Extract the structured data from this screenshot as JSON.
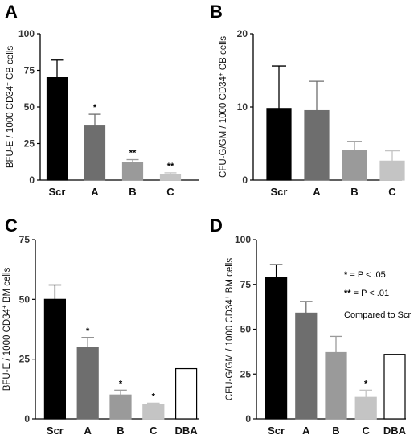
{
  "chart_data": [
    {
      "type": "bar",
      "panel": "A",
      "categories": [
        "Scr",
        "A",
        "B",
        "C"
      ],
      "values": [
        70,
        37,
        12,
        4
      ],
      "errors": [
        12,
        8,
        2,
        1
      ],
      "annotations": [
        "",
        "*",
        "**",
        "**"
      ],
      "colors": [
        "#000000",
        "#6e6e6e",
        "#9a9a9a",
        "#c4c4c4"
      ],
      "ylabel": "BFU-E / 1000 CD34",
      "ylabel_sup": "+",
      "ylabel_tail": " CB cells",
      "ylim": [
        0,
        100
      ],
      "yticks": [
        "0",
        "25",
        "50",
        "75",
        "100"
      ]
    },
    {
      "type": "bar",
      "panel": "B",
      "categories": [
        "Scr",
        "A",
        "B",
        "C"
      ],
      "values": [
        9.8,
        9.5,
        4.1,
        2.6
      ],
      "errors": [
        5.8,
        4,
        1.2,
        1.4
      ],
      "annotations": [
        "",
        "",
        "",
        ""
      ],
      "colors": [
        "#000000",
        "#6e6e6e",
        "#9a9a9a",
        "#c4c4c4"
      ],
      "ylabel": "CFU-G/GM / 1000 CD34",
      "ylabel_sup": "+",
      "ylabel_tail": " CB cells",
      "ylim": [
        0,
        20
      ],
      "yticks": [
        "0",
        "10",
        "20"
      ]
    },
    {
      "type": "bar",
      "panel": "C",
      "categories": [
        "Scr",
        "A",
        "B",
        "C",
        "DBA"
      ],
      "values": [
        50,
        30,
        10,
        6,
        21
      ],
      "errors": [
        6,
        4,
        2,
        0.6,
        0
      ],
      "annotations": [
        "",
        "*",
        "*",
        "*",
        ""
      ],
      "colors": [
        "#000000",
        "#6e6e6e",
        "#9a9a9a",
        "#c4c4c4",
        "#ffffff"
      ],
      "ylabel": "BFU-E / 1000 CD34",
      "ylabel_sup": "+",
      "ylabel_tail": " BM cells",
      "ylim": [
        0,
        75
      ],
      "yticks": [
        "0",
        "25",
        "50",
        "75"
      ]
    },
    {
      "type": "bar",
      "panel": "D",
      "categories": [
        "Scr",
        "A",
        "B",
        "C",
        "DBA"
      ],
      "values": [
        79,
        59,
        37,
        12,
        36
      ],
      "errors": [
        7,
        6.5,
        9,
        4,
        0
      ],
      "annotations": [
        "",
        "",
        "",
        "*",
        ""
      ],
      "colors": [
        "#000000",
        "#6e6e6e",
        "#9a9a9a",
        "#c4c4c4",
        "#ffffff"
      ],
      "ylabel": "CFU-G/GM / 1000 CD34",
      "ylabel_sup": "+",
      "ylabel_tail": " BM cells",
      "ylim": [
        0,
        100
      ],
      "yticks": [
        "0",
        "25",
        "50",
        "75",
        "100"
      ],
      "legend": {
        "single_star": "*",
        "single_text": " = P < .05",
        "double_star": "**",
        "double_text": " = P < .01",
        "note": "Compared to Scr"
      }
    }
  ]
}
